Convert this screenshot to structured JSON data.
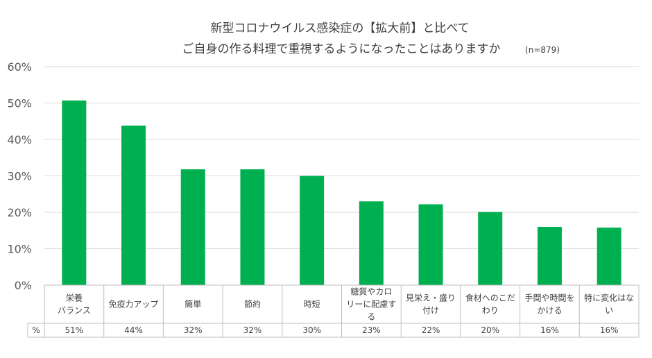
{
  "chart_data": {
    "type": "bar",
    "title": "新型コロナウイルス感染症の【拡大前】と比べて",
    "subtitle": "ご自身の作る料理で重視するようになったことはありますか",
    "note": "(n=879)",
    "categories": [
      [
        "栄養",
        "バランス"
      ],
      [
        "免疫力アップ"
      ],
      [
        "簡単"
      ],
      [
        "節約"
      ],
      [
        "時短"
      ],
      [
        "糖質やカロ",
        "リーに配慮す",
        "る"
      ],
      [
        "見栄え・盛り",
        "付け"
      ],
      [
        "食材へのこだ",
        "わり"
      ],
      [
        "手間や時間を",
        "かける"
      ],
      [
        "特に変化はな",
        "い"
      ]
    ],
    "values": [
      50.7,
      43.8,
      31.8,
      31.8,
      30.0,
      23.0,
      22.2,
      20.1,
      16.0,
      15.8
    ],
    "value_labels": [
      "51%",
      "44%",
      "32%",
      "32%",
      "30%",
      "23%",
      "22%",
      "20%",
      "16%",
      "16%"
    ],
    "row_label": "%",
    "yticks": [
      "0%",
      "10%",
      "20%",
      "30%",
      "40%",
      "50%",
      "60%"
    ],
    "ylim": [
      0,
      60
    ],
    "bar_color": "#00b050",
    "grid": true
  }
}
